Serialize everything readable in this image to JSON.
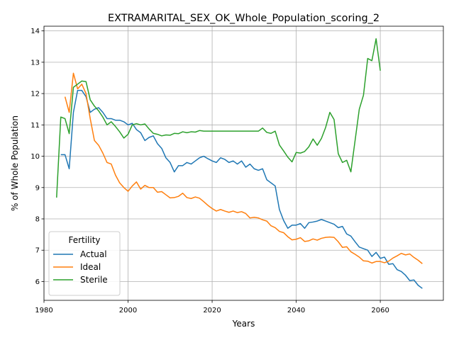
{
  "chart_data": {
    "type": "line",
    "title": "EXTRAMARITAL_SEX_OK_Whole_Population_scoring_2",
    "xlabel": "Years",
    "ylabel": "% of Whole Population",
    "xlim": [
      1980,
      2075
    ],
    "ylim": [
      5.4,
      14.15
    ],
    "xticks": [
      1980,
      2000,
      2020,
      2040,
      2060
    ],
    "yticks": [
      6,
      7,
      8,
      9,
      10,
      11,
      12,
      13,
      14
    ],
    "grid": true,
    "legend": {
      "title": "Fertility",
      "position": "lower left"
    },
    "x": [
      1983,
      1984,
      1985,
      1986,
      1987,
      1988,
      1989,
      1990,
      1991,
      1992,
      1993,
      1994,
      1995,
      1996,
      1997,
      1998,
      1999,
      2000,
      2001,
      2002,
      2003,
      2004,
      2005,
      2006,
      2007,
      2008,
      2009,
      2010,
      2011,
      2012,
      2013,
      2014,
      2015,
      2016,
      2017,
      2018,
      2019,
      2020,
      2021,
      2022,
      2023,
      2024,
      2025,
      2026,
      2027,
      2028,
      2029,
      2030,
      2031,
      2032,
      2033,
      2034,
      2035,
      2036,
      2037,
      2038,
      2039,
      2040,
      2041,
      2042,
      2043,
      2044,
      2045,
      2046,
      2047,
      2048,
      2049,
      2050,
      2051,
      2052,
      2053,
      2054,
      2055,
      2056,
      2057,
      2058,
      2059,
      2060,
      2061,
      2062,
      2063,
      2064,
      2065,
      2066,
      2067,
      2068,
      2069,
      2070
    ],
    "series": [
      {
        "name": "Actual",
        "color": "#1f77b4",
        "values": [
          null,
          10.05,
          10.05,
          9.6,
          11.4,
          12.1,
          12.1,
          11.9,
          11.4,
          11.5,
          11.55,
          11.4,
          11.2,
          11.2,
          11.15,
          11.15,
          11.1,
          11.0,
          11.05,
          10.85,
          10.75,
          10.5,
          10.6,
          10.65,
          10.4,
          10.25,
          9.95,
          9.8,
          9.5,
          9.7,
          9.7,
          9.8,
          9.75,
          9.85,
          9.95,
          10.0,
          9.92,
          9.85,
          9.8,
          9.95,
          9.9,
          9.8,
          9.85,
          9.75,
          9.85,
          9.65,
          9.75,
          9.6,
          9.55,
          9.6,
          9.25,
          9.15,
          9.05,
          8.3,
          7.95,
          7.7,
          7.8,
          7.8,
          7.85,
          7.7,
          7.88,
          7.9,
          7.93,
          7.98,
          7.93,
          7.88,
          7.83,
          7.72,
          7.76,
          7.52,
          7.45,
          7.27,
          7.1,
          7.05,
          7.0,
          6.8,
          6.93,
          6.74,
          6.78,
          6.55,
          6.57,
          6.38,
          6.32,
          6.2,
          6.03,
          6.05,
          5.88,
          5.78
        ]
      },
      {
        "name": "Ideal",
        "color": "#ff7f0e",
        "values": [
          null,
          null,
          11.9,
          11.4,
          12.65,
          12.15,
          12.3,
          12.0,
          11.2,
          10.5,
          10.35,
          10.1,
          9.8,
          9.75,
          9.4,
          9.15,
          9.0,
          8.88,
          9.05,
          9.18,
          8.95,
          9.07,
          9.0,
          9.0,
          8.85,
          8.87,
          8.77,
          8.67,
          8.68,
          8.72,
          8.82,
          8.68,
          8.65,
          8.7,
          8.66,
          8.55,
          8.43,
          8.33,
          8.25,
          8.3,
          8.25,
          8.21,
          8.25,
          8.2,
          8.23,
          8.17,
          8.03,
          8.05,
          8.03,
          7.97,
          7.93,
          7.78,
          7.72,
          7.6,
          7.56,
          7.43,
          7.33,
          7.35,
          7.4,
          7.28,
          7.3,
          7.36,
          7.32,
          7.38,
          7.41,
          7.42,
          7.41,
          7.27,
          7.09,
          7.11,
          6.95,
          6.87,
          6.78,
          6.66,
          6.65,
          6.59,
          6.64,
          6.64,
          6.6,
          6.65,
          6.75,
          6.82,
          6.9,
          6.85,
          6.88,
          6.77,
          6.68,
          6.57
        ]
      },
      {
        "name": "Sterile",
        "color": "#2ca02c",
        "values": [
          8.68,
          11.25,
          11.2,
          10.72,
          12.2,
          12.3,
          12.4,
          12.38,
          11.8,
          11.6,
          11.45,
          11.25,
          11.0,
          11.1,
          10.95,
          10.78,
          10.58,
          10.7,
          11.0,
          11.04,
          11.0,
          11.03,
          10.87,
          10.73,
          10.7,
          10.65,
          10.68,
          10.67,
          10.73,
          10.72,
          10.78,
          10.75,
          10.78,
          10.77,
          10.82,
          10.8,
          10.8,
          10.8,
          10.8,
          10.8,
          10.8,
          10.8,
          10.8,
          10.8,
          10.8,
          10.8,
          10.8,
          10.8,
          10.8,
          10.9,
          10.76,
          10.73,
          10.8,
          10.36,
          10.17,
          9.97,
          9.82,
          10.12,
          10.1,
          10.15,
          10.3,
          10.55,
          10.35,
          10.57,
          10.92,
          11.4,
          11.17,
          10.08,
          9.8,
          9.87,
          9.5,
          10.5,
          11.5,
          11.95,
          13.12,
          13.05,
          13.75,
          12.73,
          null,
          null,
          null,
          null,
          null,
          null,
          null,
          null,
          null,
          null
        ]
      }
    ]
  }
}
